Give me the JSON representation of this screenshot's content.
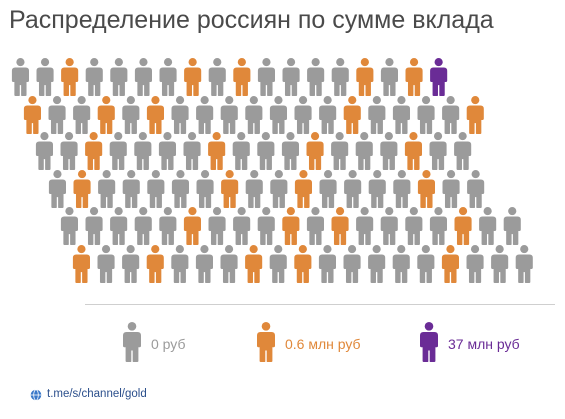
{
  "title": "Распределение россиян по сумме вклада",
  "colors": {
    "zero": "#9b9b9b",
    "mid": "#e0883a",
    "rich": "#6a2c96"
  },
  "chart_data": {
    "type": "pictogram",
    "title": "Распределение россиян по сумме вклада",
    "categories": [
      "0 руб",
      "0.6 млн руб",
      "37 млн руб"
    ],
    "category_keys": [
      "zero",
      "mid",
      "rich"
    ],
    "rows": [
      "zzmzzzzmzmzzzzmzmr",
      "mzzmzmzzzzzzzmzzzzm",
      "zzmzzzzmzzzmzzzmzz",
      "zmzzzzzmzzmzzzzmzz",
      "zzzzzmzzzmzmzzzzmzz",
      "mzzmzzzmzmzzzzzmzzz"
    ]
  },
  "legend": [
    {
      "key": "zero",
      "label": "0 руб",
      "icon": "person-icon-gray"
    },
    {
      "key": "mid",
      "label": "0.6 млн руб",
      "icon": "person-icon-orange"
    },
    {
      "key": "rich",
      "label": "37 млн руб",
      "icon": "person-icon-purple"
    }
  ],
  "footer": {
    "icon": "globe-icon",
    "text": "t.me/s/channel/gold"
  }
}
